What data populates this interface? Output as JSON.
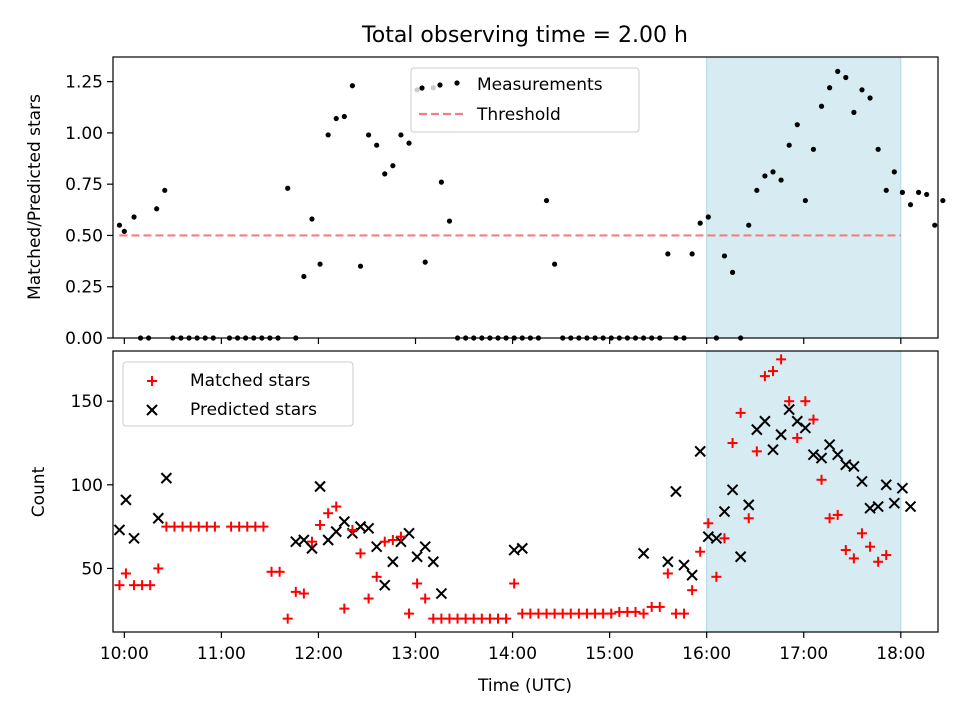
{
  "title": "Total observing time = 2.00 h",
  "xlabel": "Time (UTC)",
  "x_tick_labels": [
    "10:00",
    "11:00",
    "12:00",
    "13:00",
    "14:00",
    "15:00",
    "16:00",
    "17:00",
    "18:00"
  ],
  "colors": {
    "threshold": "#f08080",
    "highlight": "#add8e6",
    "matched": "#ff0000",
    "predicted": "#000000",
    "measurements": "#000000"
  },
  "chart_data": [
    {
      "type": "scatter",
      "ylabel": "Matched/Predicted stars",
      "y_tick_labels": [
        "0.00",
        "0.25",
        "0.50",
        "0.75",
        "1.00",
        "1.25"
      ],
      "xlim": [
        "09:53",
        "18:23"
      ],
      "ylim": [
        0,
        1.37
      ],
      "grid": false,
      "legend": "top-center",
      "highlight_span": [
        "16:00",
        "18:00"
      ],
      "threshold": {
        "name": "Threshold",
        "value": 0.5,
        "x": [
          "09:57",
          "18:00"
        ]
      },
      "series": [
        {
          "name": "Measurements",
          "points": [
            [
              "09:57",
              0.55
            ],
            [
              "10:00",
              0.52
            ],
            [
              "10:06",
              0.59
            ],
            [
              "10:10",
              0
            ],
            [
              "10:15",
              0
            ],
            [
              "10:20",
              0.63
            ],
            [
              "10:25",
              0.72
            ],
            [
              "10:30",
              0
            ],
            [
              "10:35",
              0
            ],
            [
              "10:40",
              0
            ],
            [
              "10:45",
              0
            ],
            [
              "10:50",
              0
            ],
            [
              "10:55",
              0
            ],
            [
              "11:05",
              0
            ],
            [
              "11:10",
              0
            ],
            [
              "11:15",
              0
            ],
            [
              "11:20",
              0
            ],
            [
              "11:25",
              0
            ],
            [
              "11:30",
              0
            ],
            [
              "11:35",
              0
            ],
            [
              "11:41",
              0.73
            ],
            [
              "11:46",
              0
            ],
            [
              "11:51",
              0.3
            ],
            [
              "11:56",
              0.58
            ],
            [
              "12:01",
              0.36
            ],
            [
              "12:06",
              0.99
            ],
            [
              "12:11",
              1.07
            ],
            [
              "12:16",
              1.08
            ],
            [
              "12:21",
              1.23
            ],
            [
              "12:26",
              0.35
            ],
            [
              "12:31",
              0.99
            ],
            [
              "12:36",
              0.94
            ],
            [
              "12:41",
              0.8
            ],
            [
              "12:46",
              0.84
            ],
            [
              "12:51",
              0.99
            ],
            [
              "12:56",
              0.95
            ],
            [
              "13:01",
              1.21
            ],
            [
              "13:06",
              0.37
            ],
            [
              "13:11",
              1.22
            ],
            [
              "13:16",
              0.76
            ],
            [
              "13:21",
              0.57
            ],
            [
              "13:26",
              0
            ],
            [
              "13:31",
              0
            ],
            [
              "13:36",
              0
            ],
            [
              "13:41",
              0
            ],
            [
              "13:46",
              0
            ],
            [
              "13:51",
              0
            ],
            [
              "13:56",
              0
            ],
            [
              "14:01",
              0
            ],
            [
              "14:06",
              0
            ],
            [
              "14:11",
              0
            ],
            [
              "14:16",
              0
            ],
            [
              "14:21",
              0.67
            ],
            [
              "14:26",
              0.36
            ],
            [
              "14:31",
              0
            ],
            [
              "14:36",
              0
            ],
            [
              "14:41",
              0
            ],
            [
              "14:46",
              0
            ],
            [
              "14:51",
              0
            ],
            [
              "14:56",
              0
            ],
            [
              "15:01",
              0
            ],
            [
              "15:06",
              0
            ],
            [
              "15:11",
              0
            ],
            [
              "15:16",
              0
            ],
            [
              "15:21",
              0
            ],
            [
              "15:26",
              0
            ],
            [
              "15:31",
              0
            ],
            [
              "15:36",
              0.41
            ],
            [
              "15:41",
              0
            ],
            [
              "15:46",
              0
            ],
            [
              "15:51",
              0.41
            ],
            [
              "15:56",
              0.56
            ],
            [
              "16:01",
              0.59
            ],
            [
              "16:06",
              0
            ],
            [
              "16:11",
              0.4
            ],
            [
              "16:16",
              0.32
            ],
            [
              "16:21",
              0
            ],
            [
              "16:26",
              0.55
            ],
            [
              "16:31",
              0.72
            ],
            [
              "16:36",
              0.79
            ],
            [
              "16:41",
              0.81
            ],
            [
              "16:46",
              0.77
            ],
            [
              "16:51",
              0.94
            ],
            [
              "16:56",
              1.04
            ],
            [
              "17:01",
              0.67
            ],
            [
              "17:06",
              0.92
            ],
            [
              "17:11",
              1.13
            ],
            [
              "17:16",
              1.22
            ],
            [
              "17:21",
              1.3
            ],
            [
              "17:26",
              1.27
            ],
            [
              "17:31",
              1.1
            ],
            [
              "17:36",
              1.21
            ],
            [
              "17:41",
              1.17
            ],
            [
              "17:46",
              0.92
            ],
            [
              "17:51",
              0.72
            ],
            [
              "17:56",
              0.81
            ],
            [
              "18:01",
              0.71
            ],
            [
              "18:06",
              0.65
            ],
            [
              "18:11",
              0.71
            ],
            [
              "18:16",
              0.7
            ],
            [
              "18:21",
              0.55
            ],
            [
              "18:26",
              0.67
            ]
          ]
        }
      ]
    },
    {
      "type": "scatter",
      "ylabel": "Count",
      "y_tick_labels": [
        "50",
        "100",
        "150"
      ],
      "xlim": [
        "09:53",
        "18:23"
      ],
      "ylim": [
        12,
        180
      ],
      "grid": false,
      "legend": "top-left",
      "highlight_span": [
        "16:00",
        "18:00"
      ],
      "series": [
        {
          "name": "Matched stars",
          "points": [
            [
              "09:57",
              40
            ],
            [
              "10:01",
              47
            ],
            [
              "10:06",
              40
            ],
            [
              "10:11",
              40
            ],
            [
              "10:16",
              40
            ],
            [
              "10:21",
              50
            ],
            [
              "10:26",
              75
            ],
            [
              "10:31",
              75
            ],
            [
              "10:36",
              75
            ],
            [
              "10:41",
              75
            ],
            [
              "10:46",
              75
            ],
            [
              "10:51",
              75
            ],
            [
              "10:56",
              75
            ],
            [
              "11:06",
              75
            ],
            [
              "11:11",
              75
            ],
            [
              "11:16",
              75
            ],
            [
              "11:21",
              75
            ],
            [
              "11:26",
              75
            ],
            [
              "11:31",
              48
            ],
            [
              "11:36",
              48
            ],
            [
              "11:41",
              20
            ],
            [
              "11:46",
              36
            ],
            [
              "11:51",
              35
            ],
            [
              "11:56",
              66
            ],
            [
              "12:01",
              76
            ],
            [
              "12:06",
              83
            ],
            [
              "12:11",
              87
            ],
            [
              "12:16",
              26
            ],
            [
              "12:21",
              73
            ],
            [
              "12:26",
              59
            ],
            [
              "12:31",
              32
            ],
            [
              "12:36",
              45
            ],
            [
              "12:41",
              66
            ],
            [
              "12:46",
              67
            ],
            [
              "12:51",
              69
            ],
            [
              "12:56",
              23
            ],
            [
              "13:01",
              41
            ],
            [
              "13:06",
              32
            ],
            [
              "13:11",
              20
            ],
            [
              "13:16",
              20
            ],
            [
              "13:21",
              20
            ],
            [
              "13:26",
              20
            ],
            [
              "13:31",
              20
            ],
            [
              "13:36",
              20
            ],
            [
              "13:41",
              20
            ],
            [
              "13:46",
              20
            ],
            [
              "13:51",
              20
            ],
            [
              "13:56",
              20
            ],
            [
              "14:01",
              41
            ],
            [
              "14:06",
              23
            ],
            [
              "14:11",
              23
            ],
            [
              "14:16",
              23
            ],
            [
              "14:21",
              23
            ],
            [
              "14:26",
              23
            ],
            [
              "14:31",
              23
            ],
            [
              "14:36",
              23
            ],
            [
              "14:41",
              23
            ],
            [
              "14:46",
              23
            ],
            [
              "14:51",
              23
            ],
            [
              "14:56",
              23
            ],
            [
              "15:01",
              23
            ],
            [
              "15:06",
              24
            ],
            [
              "15:11",
              24
            ],
            [
              "15:16",
              24
            ],
            [
              "15:21",
              23
            ],
            [
              "15:26",
              27
            ],
            [
              "15:31",
              27
            ],
            [
              "15:36",
              47
            ],
            [
              "15:41",
              23
            ],
            [
              "15:46",
              23
            ],
            [
              "15:51",
              37
            ],
            [
              "15:56",
              60
            ],
            [
              "16:01",
              77
            ],
            [
              "16:06",
              45
            ],
            [
              "16:11",
              68
            ],
            [
              "16:16",
              125
            ],
            [
              "16:21",
              143
            ],
            [
              "16:26",
              80
            ],
            [
              "16:31",
              120
            ],
            [
              "16:36",
              165
            ],
            [
              "16:41",
              168
            ],
            [
              "16:46",
              175
            ],
            [
              "16:51",
              150
            ],
            [
              "16:56",
              128
            ],
            [
              "17:01",
              150
            ],
            [
              "17:06",
              139
            ],
            [
              "17:11",
              103
            ],
            [
              "17:16",
              80
            ],
            [
              "17:21",
              82
            ],
            [
              "17:26",
              61
            ],
            [
              "17:31",
              56
            ],
            [
              "17:36",
              71
            ],
            [
              "17:41",
              63
            ],
            [
              "17:46",
              54
            ],
            [
              "17:51",
              58
            ]
          ]
        },
        {
          "name": "Predicted stars",
          "points": [
            [
              "09:57",
              73
            ],
            [
              "10:01",
              91
            ],
            [
              "10:06",
              68
            ],
            [
              "10:21",
              80
            ],
            [
              "10:26",
              104
            ],
            [
              "11:46",
              66
            ],
            [
              "11:51",
              67
            ],
            [
              "11:56",
              62
            ],
            [
              "12:01",
              99
            ],
            [
              "12:06",
              67
            ],
            [
              "12:11",
              72
            ],
            [
              "12:16",
              78
            ],
            [
              "12:21",
              71
            ],
            [
              "12:26",
              75
            ],
            [
              "12:31",
              74
            ],
            [
              "12:36",
              63
            ],
            [
              "12:41",
              40
            ],
            [
              "12:46",
              54
            ],
            [
              "12:51",
              66
            ],
            [
              "12:56",
              71
            ],
            [
              "13:01",
              57
            ],
            [
              "13:06",
              63
            ],
            [
              "13:11",
              54
            ],
            [
              "13:16",
              35
            ],
            [
              "14:01",
              61
            ],
            [
              "14:06",
              62
            ],
            [
              "15:21",
              59
            ],
            [
              "15:36",
              54
            ],
            [
              "15:41",
              96
            ],
            [
              "15:46",
              52
            ],
            [
              "15:51",
              46
            ],
            [
              "15:56",
              120
            ],
            [
              "16:01",
              69
            ],
            [
              "16:06",
              68
            ],
            [
              "16:11",
              84
            ],
            [
              "16:16",
              97
            ],
            [
              "16:21",
              57
            ],
            [
              "16:26",
              88
            ],
            [
              "16:31",
              133
            ],
            [
              "16:36",
              138
            ],
            [
              "16:41",
              121
            ],
            [
              "16:46",
              130
            ],
            [
              "16:51",
              145
            ],
            [
              "16:56",
              138
            ],
            [
              "17:01",
              134
            ],
            [
              "17:06",
              118
            ],
            [
              "17:11",
              116
            ],
            [
              "17:16",
              124
            ],
            [
              "17:21",
              118
            ],
            [
              "17:26",
              112
            ],
            [
              "17:31",
              111
            ],
            [
              "17:36",
              102
            ],
            [
              "17:41",
              86
            ],
            [
              "17:46",
              87
            ],
            [
              "17:51",
              100
            ],
            [
              "17:56",
              89
            ],
            [
              "18:01",
              98
            ],
            [
              "18:06",
              87
            ]
          ]
        }
      ]
    }
  ]
}
